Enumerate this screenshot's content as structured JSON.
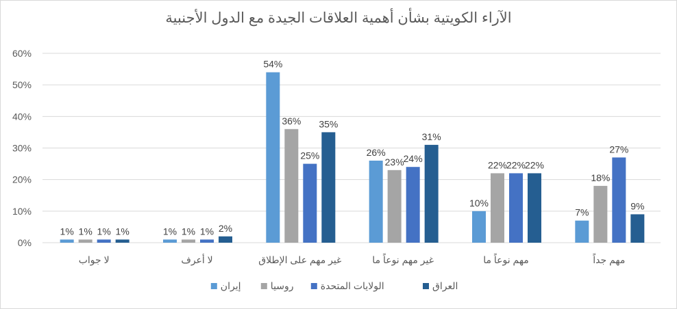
{
  "chart_data": {
    "type": "bar",
    "title": "الآراء الكويتية بشأن أهمية العلاقات الجيدة مع الدول الأجنبية",
    "categories": [
      "لا جواب",
      "لا أعرف",
      "غير مهم على الإطلاق",
      "غير مهم نوعاً ما",
      "مهم نوعاً ما",
      "مهم جداً"
    ],
    "series": [
      {
        "name": "إيران",
        "color": "#5b9bd5",
        "values": [
          1,
          1,
          54,
          26,
          10,
          7
        ]
      },
      {
        "name": "روسيا",
        "color": "#a5a5a5",
        "values": [
          1,
          1,
          36,
          23,
          22,
          18
        ]
      },
      {
        "name": "الولايات المتحدة",
        "color": "#4472c4",
        "values": [
          1,
          1,
          25,
          24,
          22,
          27
        ]
      },
      {
        "name": "العراق",
        "color": "#255e91",
        "values": [
          1,
          2,
          35,
          31,
          22,
          9
        ]
      }
    ],
    "y_ticks": [
      "0%",
      "10%",
      "20%",
      "30%",
      "40%",
      "50%",
      "60%"
    ],
    "ylim": [
      0,
      60
    ],
    "value_suffix": "%",
    "grid": true,
    "legend_position": "bottom"
  }
}
